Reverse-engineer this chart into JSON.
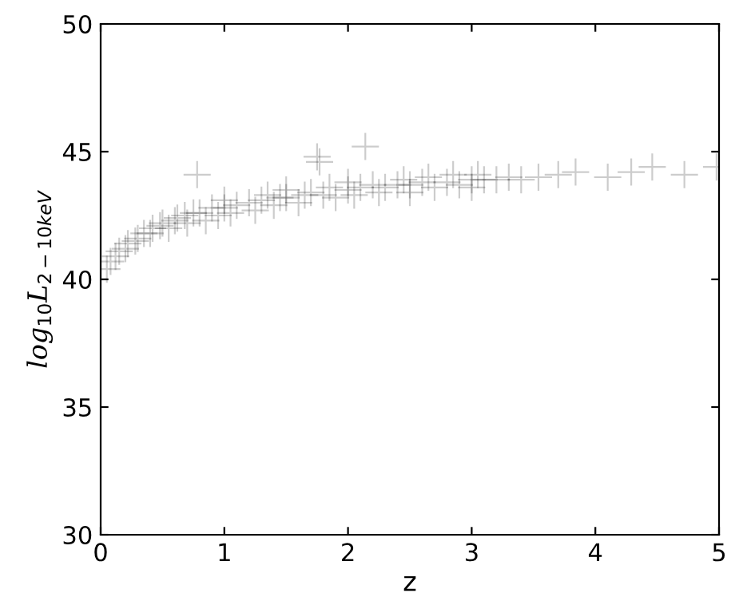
{
  "chart_data": {
    "type": "scatter",
    "xlabel": "z",
    "ylabel": "log$_{10}$L$_{2−10keV}$",
    "xlim": [
      0,
      5
    ],
    "ylim": [
      30,
      50
    ],
    "xticks": [
      0,
      1,
      2,
      3,
      4,
      5
    ],
    "yticks": [
      30,
      35,
      40,
      45,
      50
    ],
    "marker": "cross",
    "grid": false,
    "legend": false,
    "series": [
      {
        "color": "#000000",
        "x": [
          0.05,
          0.08,
          0.12,
          0.15,
          0.2,
          0.22,
          0.28,
          0.3,
          0.35,
          0.4,
          0.42,
          0.48,
          0.5,
          0.55,
          0.6,
          0.62,
          0.68,
          0.7,
          0.75,
          0.78,
          0.8,
          0.85,
          0.9,
          0.95,
          1.0,
          1.0,
          1.05,
          1.1,
          1.2,
          1.25,
          1.3,
          1.35,
          1.4,
          1.45,
          1.5,
          1.5,
          1.6,
          1.65,
          1.7,
          1.75,
          1.77,
          1.8,
          1.85,
          1.9,
          2.0,
          2.0,
          2.05,
          2.1,
          2.14,
          2.2,
          2.25,
          2.3,
          2.4,
          2.45,
          2.5,
          2.5,
          2.6,
          2.65,
          2.7,
          2.8,
          2.85,
          2.9,
          3.0,
          3.0,
          3.05,
          3.1,
          3.2,
          3.3,
          3.4,
          3.54,
          3.7,
          3.84,
          4.1,
          4.29,
          4.46,
          4.72,
          4.98
        ],
        "values": [
          40.4,
          40.7,
          40.9,
          41.1,
          41.2,
          41.4,
          41.5,
          41.6,
          41.8,
          41.8,
          42.0,
          42.1,
          42.2,
          42.0,
          42.3,
          42.4,
          42.5,
          42.2,
          42.6,
          44.1,
          42.6,
          42.3,
          42.8,
          42.5,
          42.8,
          43.1,
          42.6,
          42.9,
          43.0,
          42.7,
          43.1,
          43.3,
          42.9,
          43.2,
          43.2,
          43.5,
          43.0,
          43.3,
          43.4,
          44.8,
          44.6,
          43.3,
          43.6,
          43.2,
          43.5,
          43.8,
          43.3,
          43.6,
          45.2,
          43.7,
          43.4,
          43.6,
          43.7,
          43.9,
          43.7,
          43.4,
          43.8,
          44.0,
          43.6,
          43.8,
          44.1,
          43.7,
          43.9,
          43.6,
          44.1,
          43.9,
          43.9,
          44.0,
          43.9,
          44.0,
          44.1,
          44.2,
          44.0,
          44.2,
          44.4,
          44.1,
          44.4
        ]
      }
    ]
  }
}
